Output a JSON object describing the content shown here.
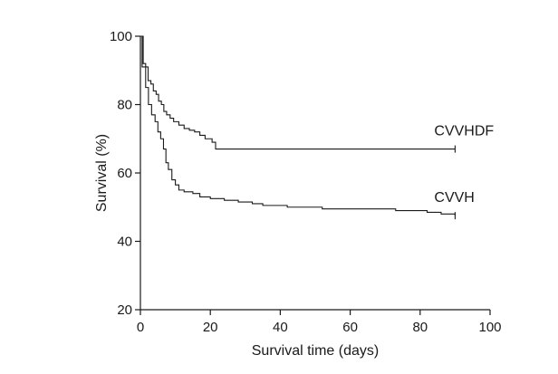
{
  "chart_data": {
    "type": "line",
    "title": "",
    "xlabel": "Survival time (days)",
    "ylabel": "Survival (%)",
    "xlim": [
      0,
      100
    ],
    "ylim": [
      20,
      100
    ],
    "xticks": [
      0,
      20,
      40,
      60,
      80,
      100
    ],
    "yticks": [
      20,
      40,
      60,
      80,
      100
    ],
    "step": true,
    "grid": false,
    "legend": "none",
    "series": [
      {
        "name": "CVVHDF",
        "censored_at": 90,
        "points": [
          [
            0,
            100
          ],
          [
            0.8,
            92
          ],
          [
            1.5,
            91
          ],
          [
            2.2,
            87
          ],
          [
            3,
            86
          ],
          [
            3.7,
            84
          ],
          [
            4.5,
            83
          ],
          [
            5.2,
            81
          ],
          [
            6,
            80
          ],
          [
            6.7,
            78
          ],
          [
            7.5,
            77
          ],
          [
            8.5,
            76
          ],
          [
            9.5,
            75
          ],
          [
            11,
            74
          ],
          [
            12.5,
            73
          ],
          [
            14,
            72.5
          ],
          [
            15.5,
            72
          ],
          [
            17,
            71
          ],
          [
            18.5,
            70
          ],
          [
            20.5,
            69
          ],
          [
            21.5,
            67
          ],
          [
            90,
            67
          ]
        ]
      },
      {
        "name": "CVVH",
        "censored_at": 90,
        "points": [
          [
            0,
            100
          ],
          [
            0.5,
            91
          ],
          [
            1.5,
            85
          ],
          [
            2.3,
            80
          ],
          [
            3.2,
            77
          ],
          [
            4.2,
            75
          ],
          [
            5,
            72
          ],
          [
            5.8,
            70
          ],
          [
            6.6,
            67
          ],
          [
            7.3,
            63
          ],
          [
            8,
            61
          ],
          [
            9,
            58
          ],
          [
            10,
            56.5
          ],
          [
            11,
            55
          ],
          [
            12.5,
            54.5
          ],
          [
            15,
            54
          ],
          [
            17,
            53
          ],
          [
            20,
            52.5
          ],
          [
            24,
            52
          ],
          [
            28,
            51.5
          ],
          [
            32,
            51
          ],
          [
            35,
            50.5
          ],
          [
            42,
            50
          ],
          [
            52,
            49.5
          ],
          [
            62,
            49.5
          ],
          [
            73,
            49
          ],
          [
            80,
            49
          ],
          [
            82,
            48.5
          ],
          [
            86,
            48
          ],
          [
            90,
            47.5
          ]
        ]
      }
    ]
  }
}
